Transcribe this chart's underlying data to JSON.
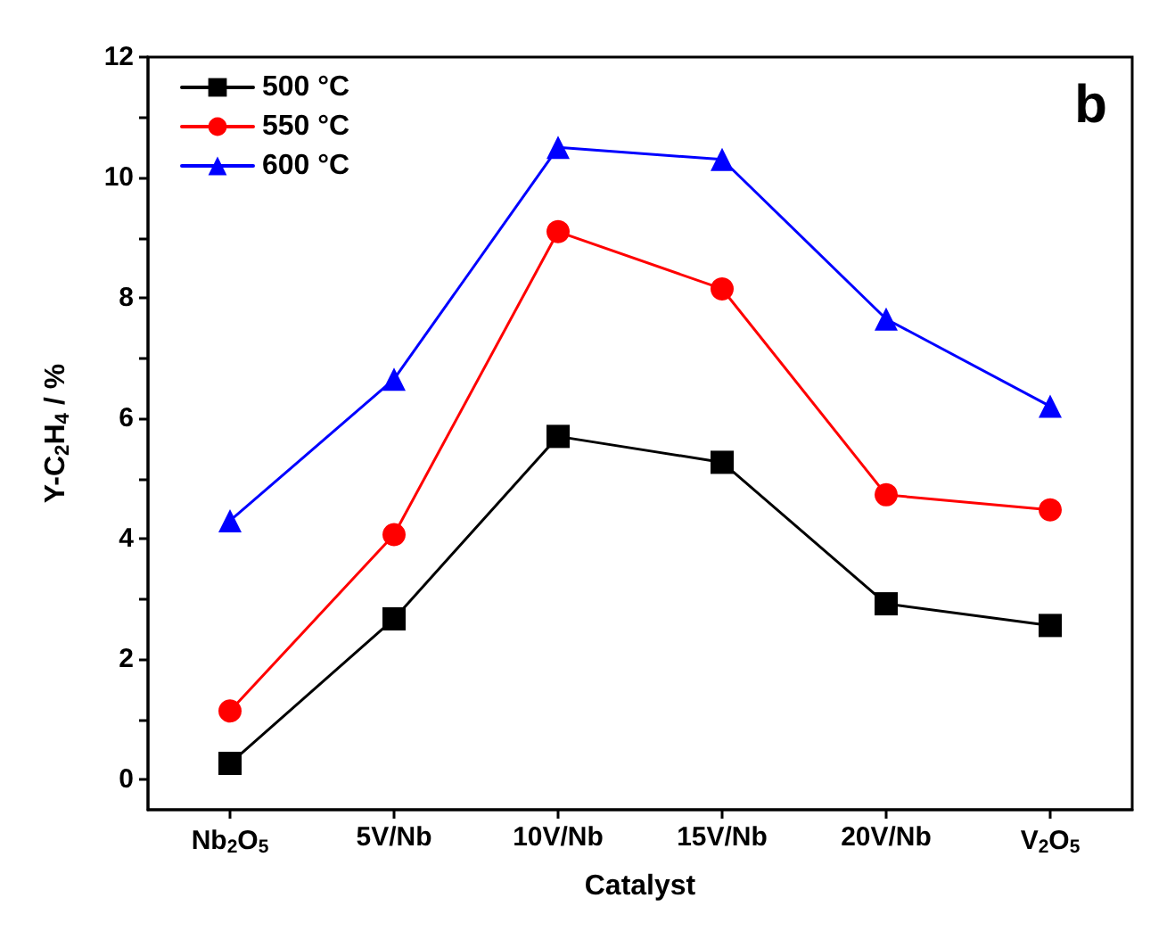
{
  "chart_data": {
    "type": "line",
    "xlabel": "Catalyst",
    "ylabel": "Y-C$_{2}$H$_{4}$ / %",
    "categories": [
      "Nb$_{2}$O$_{5}$",
      "5V/Nb",
      "10V/Nb",
      "15V/Nb",
      "20V/Nb",
      "V$_{2}$O$_{5}$"
    ],
    "series": [
      {
        "name": "500 °C",
        "color": "#000000",
        "marker": "square",
        "values": [
          0.27,
          2.67,
          5.7,
          5.27,
          2.92,
          2.56
        ]
      },
      {
        "name": "550 °C",
        "color": "#ff0000",
        "marker": "circle",
        "values": [
          1.14,
          4.07,
          9.1,
          8.15,
          4.73,
          4.48
        ]
      },
      {
        "name": "600 °C",
        "color": "#0000ff",
        "marker": "triangle",
        "values": [
          4.3,
          6.65,
          10.5,
          10.3,
          7.65,
          6.2
        ]
      }
    ],
    "ylim": [
      -0.5,
      12
    ],
    "yticks": [
      0,
      {
        "value": 1,
        "label": null
      },
      2,
      {
        "value": 3,
        "label": null
      },
      4,
      {
        "value": 5,
        "label": null
      },
      6,
      {
        "value": 7,
        "label": null
      },
      8,
      {
        "value": 9,
        "label": null
      },
      10,
      {
        "value": 11,
        "label": null
      },
      12
    ],
    "annotations": [
      "b"
    ],
    "legend": "top left",
    "grid": false,
    "line_style": "solid"
  }
}
